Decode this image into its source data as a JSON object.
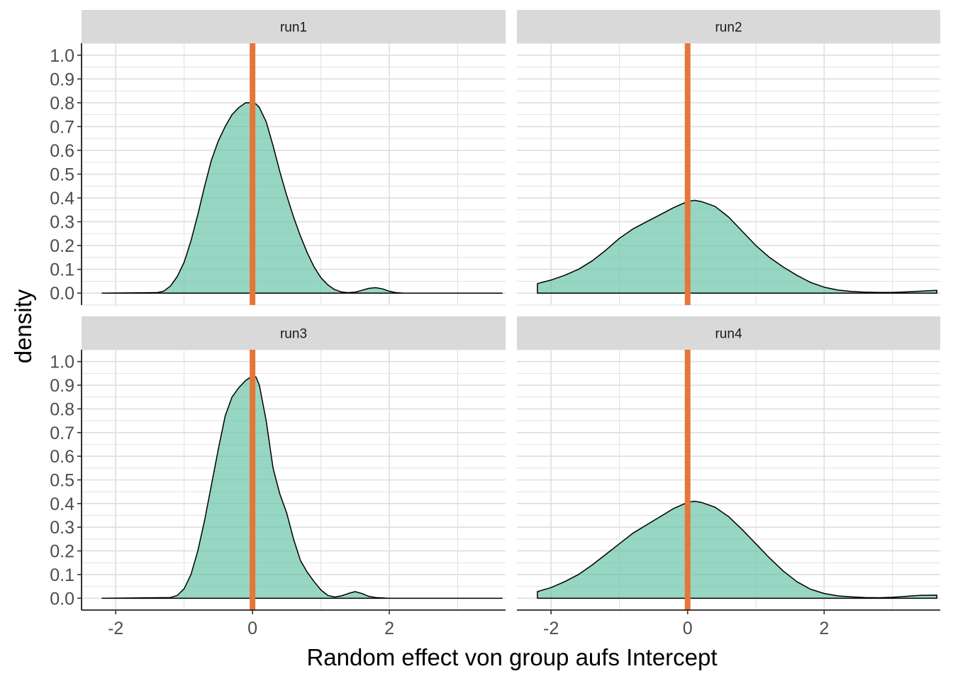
{
  "chart_data": {
    "type": "area",
    "xlabel": "Random effect von group aufs Intercept",
    "ylabel": "density",
    "xlim": [
      -2.5,
      3.7
    ],
    "ylim": [
      -0.05,
      1.05
    ],
    "x_ticks": [
      -2,
      0,
      2
    ],
    "x_tick_labels": [
      "-2",
      "0",
      "2"
    ],
    "y_ticks": [
      0,
      0.1,
      0.2,
      0.3,
      0.4,
      0.5,
      0.6,
      0.7,
      0.8,
      0.9,
      1.0
    ],
    "y_tick_labels": [
      "0.0",
      "0.1",
      "0.2",
      "0.3",
      "0.4",
      "0.5",
      "0.6",
      "0.7",
      "0.8",
      "0.9",
      "1.0"
    ],
    "grid": true,
    "reference_line_x": 0,
    "colors": {
      "fill": "#66c2a5",
      "reference_line": "#e5763a",
      "strip": "#d9d9d9"
    },
    "panels": [
      {
        "name": "run1",
        "x": [
          -2.2,
          -1.4,
          -1.3,
          -1.2,
          -1.1,
          -1.0,
          -0.9,
          -0.8,
          -0.7,
          -0.6,
          -0.5,
          -0.4,
          -0.3,
          -0.2,
          -0.1,
          0.0,
          0.05,
          0.1,
          0.2,
          0.3,
          0.4,
          0.5,
          0.6,
          0.7,
          0.8,
          0.9,
          1.0,
          1.1,
          1.2,
          1.3,
          1.4,
          1.5,
          1.6,
          1.7,
          1.8,
          1.9,
          2.0,
          2.1,
          2.2,
          3.65
        ],
        "y": [
          0.0,
          0.002,
          0.008,
          0.03,
          0.07,
          0.13,
          0.22,
          0.33,
          0.45,
          0.56,
          0.64,
          0.7,
          0.75,
          0.78,
          0.8,
          0.8,
          0.795,
          0.78,
          0.72,
          0.62,
          0.51,
          0.41,
          0.32,
          0.24,
          0.17,
          0.11,
          0.065,
          0.035,
          0.015,
          0.005,
          0.002,
          0.004,
          0.012,
          0.02,
          0.023,
          0.018,
          0.008,
          0.002,
          0.0,
          0.0
        ]
      },
      {
        "name": "run2",
        "x": [
          -2.2,
          -2.0,
          -1.8,
          -1.6,
          -1.4,
          -1.2,
          -1.0,
          -0.8,
          -0.6,
          -0.4,
          -0.2,
          0.0,
          0.1,
          0.2,
          0.4,
          0.6,
          0.8,
          1.0,
          1.2,
          1.4,
          1.6,
          1.8,
          2.0,
          2.2,
          2.4,
          2.6,
          2.8,
          3.0,
          3.2,
          3.4,
          3.65
        ],
        "y": [
          0.04,
          0.055,
          0.075,
          0.1,
          0.135,
          0.18,
          0.23,
          0.27,
          0.3,
          0.33,
          0.36,
          0.385,
          0.39,
          0.385,
          0.365,
          0.32,
          0.26,
          0.2,
          0.15,
          0.11,
          0.075,
          0.045,
          0.025,
          0.013,
          0.007,
          0.004,
          0.003,
          0.003,
          0.005,
          0.008,
          0.012
        ]
      },
      {
        "name": "run3",
        "x": [
          -2.2,
          -1.2,
          -1.1,
          -1.0,
          -0.9,
          -0.8,
          -0.7,
          -0.6,
          -0.5,
          -0.4,
          -0.3,
          -0.2,
          -0.1,
          0.0,
          0.05,
          0.1,
          0.2,
          0.3,
          0.4,
          0.5,
          0.6,
          0.7,
          0.8,
          0.9,
          1.0,
          1.1,
          1.2,
          1.3,
          1.4,
          1.5,
          1.6,
          1.7,
          1.8,
          2.0,
          3.65
        ],
        "y": [
          0.0,
          0.003,
          0.012,
          0.04,
          0.1,
          0.2,
          0.33,
          0.48,
          0.63,
          0.77,
          0.85,
          0.89,
          0.92,
          0.94,
          0.935,
          0.9,
          0.75,
          0.55,
          0.44,
          0.36,
          0.25,
          0.16,
          0.11,
          0.07,
          0.035,
          0.012,
          0.005,
          0.01,
          0.02,
          0.028,
          0.02,
          0.008,
          0.003,
          0.0,
          0.0
        ]
      },
      {
        "name": "run4",
        "x": [
          -2.2,
          -2.0,
          -1.8,
          -1.6,
          -1.4,
          -1.2,
          -1.0,
          -0.8,
          -0.6,
          -0.4,
          -0.2,
          0.0,
          0.1,
          0.2,
          0.4,
          0.6,
          0.8,
          1.0,
          1.2,
          1.4,
          1.6,
          1.8,
          2.0,
          2.2,
          2.4,
          2.6,
          2.8,
          3.0,
          3.2,
          3.4,
          3.65
        ],
        "y": [
          0.028,
          0.045,
          0.07,
          0.1,
          0.14,
          0.185,
          0.23,
          0.275,
          0.31,
          0.345,
          0.38,
          0.405,
          0.41,
          0.405,
          0.385,
          0.345,
          0.29,
          0.23,
          0.17,
          0.115,
          0.07,
          0.038,
          0.02,
          0.01,
          0.006,
          0.003,
          0.002,
          0.004,
          0.008,
          0.012,
          0.013
        ]
      }
    ]
  }
}
